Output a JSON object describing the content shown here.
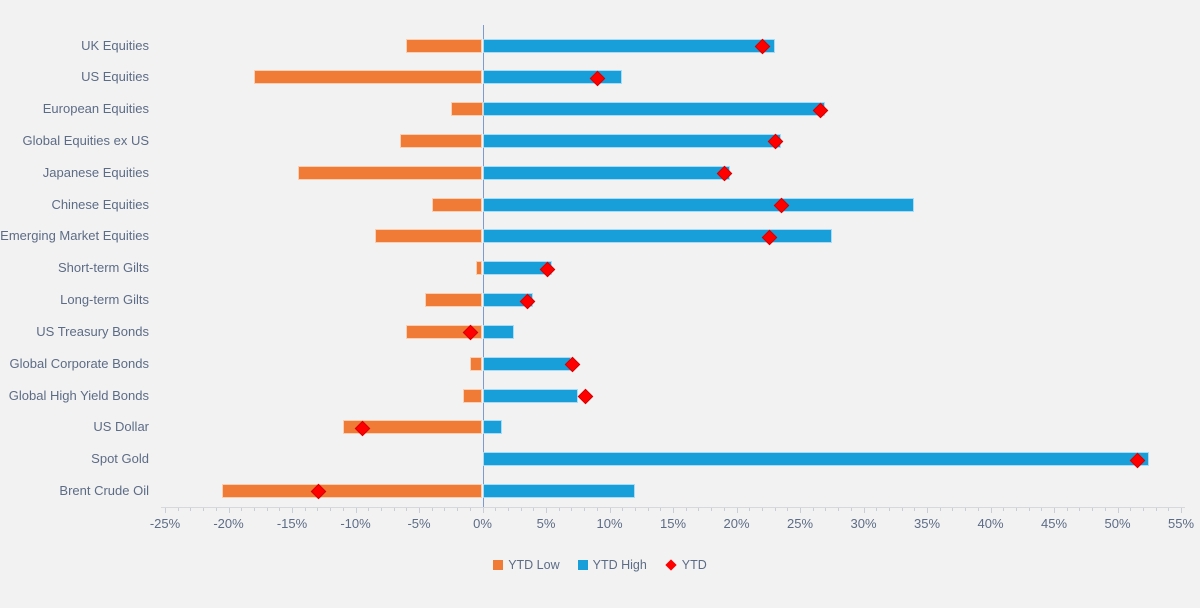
{
  "chart_data": {
    "type": "bar",
    "orientation": "horizontal",
    "title": "",
    "categories": [
      "UK Equities",
      "US Equities",
      "European Equities",
      "Global Equities ex US",
      "Japanese Equities",
      "Chinese Equities",
      "Emerging Market Equities",
      "Short-term Gilts",
      "Long-term Gilts",
      "US Treasury Bonds",
      "Global Corporate Bonds",
      "Global High Yield Bonds",
      "US Dollar",
      "Spot Gold",
      "Brent Crude Oil"
    ],
    "series": [
      {
        "name": "YTD Low",
        "type": "bar",
        "color": "#f07b37",
        "values": [
          -6,
          -18,
          -2.5,
          -6.5,
          -14.5,
          -4,
          -8.5,
          -0.5,
          -4.5,
          -6,
          -1,
          -1.5,
          -11,
          0,
          -20.5
        ]
      },
      {
        "name": "YTD High",
        "type": "bar",
        "color": "#189fd9",
        "values": [
          23,
          11,
          27,
          23.5,
          19.5,
          34,
          27.5,
          5.5,
          4,
          2.5,
          7,
          7.5,
          1.5,
          52.5,
          12
        ]
      },
      {
        "name": "YTD",
        "type": "scatter",
        "marker": "diamond",
        "color": "#fe0000",
        "values": [
          22,
          9,
          26.5,
          23,
          19,
          23.5,
          22.5,
          5,
          3.5,
          -1,
          7,
          8,
          -9.5,
          51.5,
          -13
        ]
      }
    ],
    "x_axis": {
      "min": -25,
      "max": 55,
      "major_step": 5,
      "minor_step": 1,
      "format": "percent",
      "tick_labels": [
        "-25%",
        "-20%",
        "-15%",
        "-10%",
        "-5%",
        "0%",
        "5%",
        "10%",
        "15%",
        "20%",
        "25%",
        "30%",
        "35%",
        "40%",
        "45%",
        "50%",
        "55%"
      ]
    },
    "grid": false,
    "legend": {
      "position": "bottom",
      "entries": [
        "YTD Low",
        "YTD High",
        "YTD"
      ]
    }
  },
  "colors": {
    "background": "#f2f2f2",
    "ytd_low": "#f07b37",
    "ytd_high": "#189fd9",
    "ytd_marker": "#fe0000",
    "zero_axis_line": "#7d9ad1",
    "axis_text": "#5d6c86",
    "tick_mark": "#c9cdd4"
  }
}
